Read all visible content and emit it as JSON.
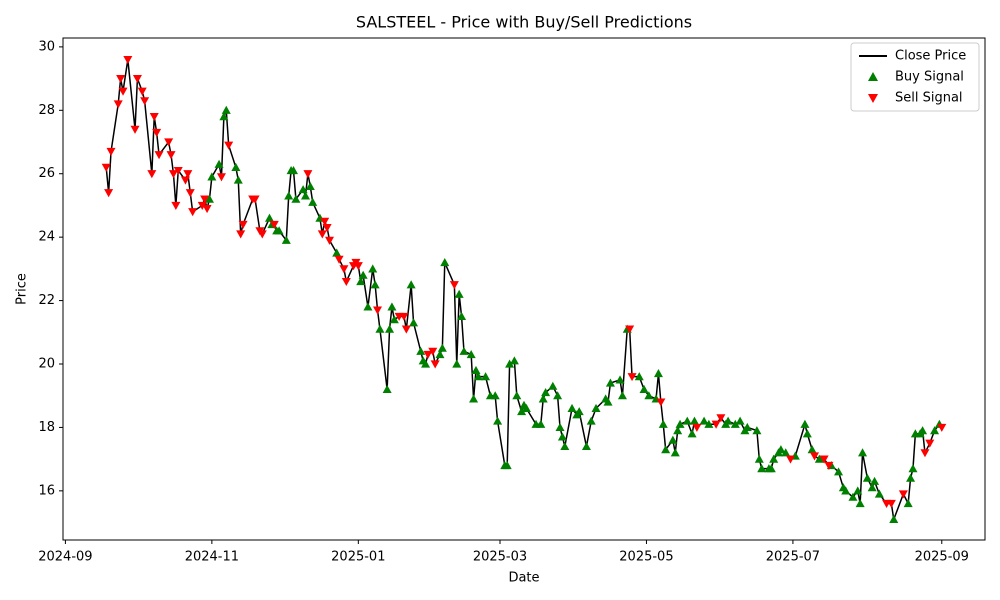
{
  "chart_data": {
    "type": "line",
    "title": "SALSTEEL - Price with Buy/Sell Predictions",
    "x_label": "Date",
    "y_label": "Price",
    "xlim": [
      "2024-08-31",
      "2025-09-19"
    ],
    "ylim": [
      14.45,
      30.28
    ],
    "xticks": [
      {
        "value": "2024-09-01",
        "label": "2024-09"
      },
      {
        "value": "2024-11-01",
        "label": "2024-11"
      },
      {
        "value": "2025-01-01",
        "label": "2025-01"
      },
      {
        "value": "2025-03-01",
        "label": "2025-03"
      },
      {
        "value": "2025-05-01",
        "label": "2025-05"
      },
      {
        "value": "2025-07-01",
        "label": "2025-07"
      },
      {
        "value": "2025-09-01",
        "label": "2025-09"
      }
    ],
    "yticks": [
      16,
      18,
      20,
      22,
      24,
      26,
      28,
      30
    ],
    "grid": false,
    "legend": "upper right",
    "series": [
      {
        "name": "Close Price",
        "type": "line",
        "color": "#000000",
        "x": [
          "2024-09-18",
          "2024-09-19",
          "2024-09-20",
          "2024-09-23",
          "2024-09-24",
          "2024-09-25",
          "2024-09-27",
          "2024-09-30",
          "2024-10-01",
          "2024-10-03",
          "2024-10-04",
          "2024-10-07",
          "2024-10-08",
          "2024-10-09",
          "2024-10-10",
          "2024-10-14",
          "2024-10-15",
          "2024-10-16",
          "2024-10-17",
          "2024-10-18",
          "2024-10-21",
          "2024-10-22",
          "2024-10-23",
          "2024-10-24",
          "2024-10-28",
          "2024-10-29",
          "2024-10-30",
          "2024-10-31",
          "2024-11-01",
          "2024-11-04",
          "2024-11-05",
          "2024-11-06",
          "2024-11-07",
          "2024-11-08",
          "2024-11-11",
          "2024-11-12",
          "2024-11-13",
          "2024-11-14",
          "2024-11-18",
          "2024-11-19",
          "2024-11-21",
          "2024-11-22",
          "2024-11-25",
          "2024-11-26",
          "2024-11-27",
          "2024-11-28",
          "2024-11-29",
          "2024-12-02",
          "2024-12-03",
          "2024-12-04",
          "2024-12-05",
          "2024-12-06",
          "2024-12-09",
          "2024-12-10",
          "2024-12-11",
          "2024-12-12",
          "2024-12-13",
          "2024-12-16",
          "2024-12-17",
          "2024-12-18",
          "2024-12-19",
          "2024-12-20",
          "2024-12-23",
          "2024-12-24",
          "2024-12-26",
          "2024-12-27",
          "2024-12-30",
          "2024-12-31",
          "2025-01-01",
          "2025-01-02",
          "2025-01-03",
          "2025-01-05",
          "2025-01-07",
          "2025-01-08",
          "2025-01-09",
          "2025-01-10",
          "2025-01-13",
          "2025-01-14",
          "2025-01-15",
          "2025-01-16",
          "2025-01-18",
          "2025-01-20",
          "2025-01-21",
          "2025-01-23",
          "2025-01-24",
          "2025-01-27",
          "2025-01-28",
          "2025-01-29",
          "2025-01-30",
          "2025-02-01",
          "2025-02-02",
          "2025-02-04",
          "2025-02-05",
          "2025-02-06",
          "2025-02-10",
          "2025-02-11",
          "2025-02-12",
          "2025-02-13",
          "2025-02-14",
          "2025-02-17",
          "2025-02-18",
          "2025-02-19",
          "2025-02-20",
          "2025-02-23",
          "2025-02-25",
          "2025-02-27",
          "2025-02-28",
          "2025-03-03",
          "2025-03-04",
          "2025-03-05",
          "2025-03-07",
          "2025-03-08",
          "2025-03-10",
          "2025-03-11",
          "2025-03-12",
          "2025-03-16",
          "2025-03-18",
          "2025-03-19",
          "2025-03-20",
          "2025-03-23",
          "2025-03-25",
          "2025-03-26",
          "2025-03-27",
          "2025-03-28",
          "2025-03-31",
          "2025-04-02",
          "2025-04-03",
          "2025-04-06",
          "2025-04-08",
          "2025-04-10",
          "2025-04-14",
          "2025-04-15",
          "2025-04-16",
          "2025-04-20",
          "2025-04-21",
          "2025-04-23",
          "2025-04-24",
          "2025-04-25",
          "2025-04-28",
          "2025-04-30",
          "2025-05-02",
          "2025-05-05",
          "2025-05-06",
          "2025-05-07",
          "2025-05-08",
          "2025-05-09",
          "2025-05-12",
          "2025-05-13",
          "2025-05-14",
          "2025-05-15",
          "2025-05-18",
          "2025-05-20",
          "2025-05-21",
          "2025-05-22",
          "2025-05-25",
          "2025-05-27",
          "2025-05-30",
          "2025-06-01",
          "2025-06-03",
          "2025-06-04",
          "2025-06-07",
          "2025-06-09",
          "2025-06-11",
          "2025-06-12",
          "2025-06-16",
          "2025-06-17",
          "2025-06-18",
          "2025-06-21",
          "2025-06-22",
          "2025-06-23",
          "2025-06-25",
          "2025-06-26",
          "2025-06-28",
          "2025-06-30",
          "2025-07-02",
          "2025-07-06",
          "2025-07-07",
          "2025-07-09",
          "2025-07-10",
          "2025-07-12",
          "2025-07-14",
          "2025-07-16",
          "2025-07-17",
          "2025-07-20",
          "2025-07-22",
          "2025-07-23",
          "2025-07-26",
          "2025-07-28",
          "2025-07-29",
          "2025-07-30",
          "2025-08-01",
          "2025-08-03",
          "2025-08-04",
          "2025-08-06",
          "2025-08-09",
          "2025-08-11",
          "2025-08-12",
          "2025-08-16",
          "2025-08-18",
          "2025-08-19",
          "2025-08-20",
          "2025-08-21",
          "2025-08-23",
          "2025-08-24",
          "2025-08-25",
          "2025-08-27",
          "2025-08-29",
          "2025-08-31",
          "2025-09-01"
        ],
        "values": [
          26.2,
          25.4,
          26.7,
          28.2,
          29.0,
          28.6,
          29.6,
          27.4,
          29.0,
          28.6,
          28.3,
          26.0,
          27.8,
          27.3,
          26.6,
          27.0,
          26.6,
          26.0,
          25.0,
          26.1,
          25.8,
          26.0,
          25.4,
          24.8,
          25.0,
          25.2,
          24.9,
          25.2,
          25.9,
          26.3,
          25.9,
          27.8,
          28.0,
          26.9,
          26.2,
          25.8,
          24.1,
          24.4,
          25.2,
          25.2,
          24.2,
          24.1,
          24.6,
          24.4,
          24.4,
          24.2,
          24.2,
          23.9,
          25.3,
          26.1,
          26.1,
          25.2,
          25.5,
          25.3,
          26.0,
          25.6,
          25.1,
          24.6,
          24.1,
          24.5,
          24.3,
          23.9,
          23.5,
          23.3,
          23.0,
          22.6,
          23.1,
          23.2,
          23.1,
          22.6,
          22.8,
          21.8,
          23.0,
          22.5,
          21.7,
          21.1,
          19.2,
          21.1,
          21.8,
          21.4,
          21.5,
          21.5,
          21.1,
          22.5,
          21.3,
          20.4,
          20.1,
          20.0,
          20.3,
          20.4,
          20.0,
          20.3,
          20.5,
          23.2,
          22.5,
          20.0,
          22.2,
          21.5,
          20.4,
          20.3,
          18.9,
          19.8,
          19.6,
          19.6,
          19.0,
          19.0,
          18.2,
          16.8,
          16.8,
          20.0,
          20.1,
          19.0,
          18.5,
          18.7,
          18.6,
          18.1,
          18.1,
          18.9,
          19.1,
          19.3,
          19.0,
          18.0,
          17.7,
          17.4,
          18.6,
          18.4,
          18.5,
          17.4,
          18.2,
          18.6,
          18.9,
          18.8,
          19.4,
          19.5,
          19.0,
          21.1,
          21.1,
          19.6,
          19.6,
          19.2,
          19.0,
          18.9,
          19.7,
          18.8,
          18.1,
          17.3,
          17.6,
          17.2,
          17.9,
          18.1,
          18.2,
          17.8,
          18.2,
          18.0,
          18.2,
          18.1,
          18.1,
          18.3,
          18.1,
          18.2,
          18.1,
          18.2,
          17.9,
          18.0,
          17.9,
          17.0,
          16.7,
          16.7,
          16.7,
          17.0,
          17.2,
          17.3,
          17.2,
          17.0,
          17.1,
          18.1,
          17.8,
          17.3,
          17.1,
          17.0,
          17.0,
          16.8,
          16.8,
          16.6,
          16.1,
          16.0,
          15.8,
          16.0,
          15.6,
          17.2,
          16.4,
          16.1,
          16.3,
          15.9,
          15.6,
          15.6,
          15.1,
          15.9,
          15.6,
          16.4,
          16.7,
          17.8,
          17.8,
          17.9,
          17.2,
          17.5,
          17.9,
          18.1,
          18.0
        ]
      },
      {
        "name": "Buy Signal",
        "type": "scatter",
        "marker": "^",
        "color": "#008000",
        "x": [
          "2024-10-31",
          "2024-11-01",
          "2024-11-04",
          "2024-11-06",
          "2024-11-07",
          "2024-11-11",
          "2024-11-12",
          "2024-11-25",
          "2024-11-26",
          "2024-11-28",
          "2024-11-29",
          "2024-12-02",
          "2024-12-03",
          "2024-12-04",
          "2024-12-05",
          "2024-12-06",
          "2024-12-09",
          "2024-12-10",
          "2024-12-12",
          "2024-12-13",
          "2024-12-16",
          "2024-12-23",
          "2025-01-02",
          "2025-01-03",
          "2025-01-05",
          "2025-01-07",
          "2025-01-08",
          "2025-01-10",
          "2025-01-13",
          "2025-01-14",
          "2025-01-15",
          "2025-01-16",
          "2025-01-23",
          "2025-01-24",
          "2025-01-27",
          "2025-01-28",
          "2025-01-29",
          "2025-02-04",
          "2025-02-05",
          "2025-02-06",
          "2025-02-11",
          "2025-02-12",
          "2025-02-13",
          "2025-02-14",
          "2025-02-17",
          "2025-02-18",
          "2025-02-19",
          "2025-02-20",
          "2025-02-23",
          "2025-02-25",
          "2025-02-27",
          "2025-02-28",
          "2025-03-03",
          "2025-03-04",
          "2025-03-05",
          "2025-03-07",
          "2025-03-08",
          "2025-03-10",
          "2025-03-11",
          "2025-03-12",
          "2025-03-16",
          "2025-03-18",
          "2025-03-19",
          "2025-03-20",
          "2025-03-23",
          "2025-03-25",
          "2025-03-26",
          "2025-03-27",
          "2025-03-28",
          "2025-03-31",
          "2025-04-02",
          "2025-04-03",
          "2025-04-06",
          "2025-04-08",
          "2025-04-10",
          "2025-04-14",
          "2025-04-15",
          "2025-04-16",
          "2025-04-20",
          "2025-04-21",
          "2025-04-23",
          "2025-04-28",
          "2025-04-30",
          "2025-05-02",
          "2025-05-05",
          "2025-05-06",
          "2025-05-08",
          "2025-05-09",
          "2025-05-12",
          "2025-05-13",
          "2025-05-14",
          "2025-05-15",
          "2025-05-18",
          "2025-05-20",
          "2025-05-21",
          "2025-05-25",
          "2025-05-27",
          "2025-06-03",
          "2025-06-04",
          "2025-06-07",
          "2025-06-09",
          "2025-06-11",
          "2025-06-12",
          "2025-06-16",
          "2025-06-17",
          "2025-06-18",
          "2025-06-21",
          "2025-06-22",
          "2025-06-23",
          "2025-06-25",
          "2025-06-26",
          "2025-06-28",
          "2025-07-02",
          "2025-07-06",
          "2025-07-07",
          "2025-07-09",
          "2025-07-12",
          "2025-07-17",
          "2025-07-20",
          "2025-07-22",
          "2025-07-23",
          "2025-07-26",
          "2025-07-28",
          "2025-07-29",
          "2025-07-30",
          "2025-08-01",
          "2025-08-03",
          "2025-08-04",
          "2025-08-06",
          "2025-08-12",
          "2025-08-18",
          "2025-08-19",
          "2025-08-20",
          "2025-08-21",
          "2025-08-23",
          "2025-08-24",
          "2025-08-29",
          "2025-08-31"
        ],
        "values": [
          25.2,
          25.9,
          26.3,
          27.8,
          28.0,
          26.2,
          25.8,
          24.6,
          24.4,
          24.2,
          24.2,
          23.9,
          25.3,
          26.1,
          26.1,
          25.2,
          25.5,
          25.3,
          25.6,
          25.1,
          24.6,
          23.5,
          22.6,
          22.8,
          21.8,
          23.0,
          22.5,
          21.1,
          19.2,
          21.1,
          21.8,
          21.4,
          22.5,
          21.3,
          20.4,
          20.1,
          20.0,
          20.3,
          20.5,
          23.2,
          20.0,
          22.2,
          21.5,
          20.4,
          20.3,
          18.9,
          19.8,
          19.6,
          19.6,
          19.0,
          19.0,
          18.2,
          16.8,
          16.8,
          20.0,
          20.1,
          19.0,
          18.5,
          18.7,
          18.6,
          18.1,
          18.1,
          18.9,
          19.1,
          19.3,
          19.0,
          18.0,
          17.7,
          17.4,
          18.6,
          18.4,
          18.5,
          17.4,
          18.2,
          18.6,
          18.9,
          18.8,
          19.4,
          19.5,
          19.0,
          21.1,
          19.6,
          19.2,
          19.0,
          18.9,
          19.7,
          18.1,
          17.3,
          17.6,
          17.2,
          17.9,
          18.1,
          18.2,
          17.8,
          18.2,
          18.2,
          18.1,
          18.1,
          18.2,
          18.1,
          18.2,
          17.9,
          18.0,
          17.9,
          17.0,
          16.7,
          16.7,
          16.7,
          17.0,
          17.2,
          17.3,
          17.2,
          17.1,
          18.1,
          17.8,
          17.3,
          17.0,
          16.8,
          16.6,
          16.1,
          16.0,
          15.8,
          16.0,
          15.6,
          17.2,
          16.4,
          16.1,
          16.3,
          15.9,
          15.1,
          15.6,
          16.4,
          16.7,
          17.8,
          17.8,
          17.9,
          17.9,
          18.1
        ]
      },
      {
        "name": "Sell Signal",
        "type": "scatter",
        "marker": "v",
        "color": "#ff0000",
        "x": [
          "2024-09-18",
          "2024-09-19",
          "2024-09-20",
          "2024-09-23",
          "2024-09-24",
          "2024-09-25",
          "2024-09-27",
          "2024-09-30",
          "2024-10-01",
          "2024-10-03",
          "2024-10-04",
          "2024-10-07",
          "2024-10-08",
          "2024-10-09",
          "2024-10-10",
          "2024-10-14",
          "2024-10-15",
          "2024-10-16",
          "2024-10-17",
          "2024-10-18",
          "2024-10-21",
          "2024-10-22",
          "2024-10-23",
          "2024-10-24",
          "2024-10-28",
          "2024-10-29",
          "2024-10-30",
          "2024-11-05",
          "2024-11-08",
          "2024-11-13",
          "2024-11-14",
          "2024-11-18",
          "2024-11-19",
          "2024-11-21",
          "2024-11-22",
          "2024-11-27",
          "2024-12-11",
          "2024-12-17",
          "2024-12-18",
          "2024-12-19",
          "2024-12-20",
          "2024-12-24",
          "2024-12-26",
          "2024-12-27",
          "2024-12-30",
          "2024-12-31",
          "2025-01-01",
          "2025-01-09",
          "2025-01-18",
          "2025-01-20",
          "2025-01-21",
          "2025-01-30",
          "2025-02-01",
          "2025-02-02",
          "2025-02-10",
          "2025-04-24",
          "2025-04-25",
          "2025-05-07",
          "2025-05-22",
          "2025-05-30",
          "2025-06-01",
          "2025-06-30",
          "2025-07-10",
          "2025-07-14",
          "2025-07-16",
          "2025-08-09",
          "2025-08-11",
          "2025-08-16",
          "2025-08-25",
          "2025-08-27",
          "2025-09-01"
        ],
        "values": [
          26.2,
          25.4,
          26.7,
          28.2,
          29.0,
          28.6,
          29.6,
          27.4,
          29.0,
          28.6,
          28.3,
          26.0,
          27.8,
          27.3,
          26.6,
          27.0,
          26.6,
          26.0,
          25.0,
          26.1,
          25.8,
          26.0,
          25.4,
          24.8,
          25.0,
          25.2,
          24.9,
          25.9,
          26.9,
          24.1,
          24.4,
          25.2,
          25.2,
          24.2,
          24.1,
          24.4,
          26.0,
          24.1,
          24.5,
          24.3,
          23.9,
          23.3,
          23.0,
          22.6,
          23.1,
          23.2,
          23.1,
          21.7,
          21.5,
          21.5,
          21.1,
          20.3,
          20.4,
          20.0,
          22.5,
          21.1,
          19.6,
          18.8,
          18.0,
          18.1,
          18.3,
          17.0,
          17.1,
          17.0,
          16.8,
          15.6,
          15.6,
          15.9,
          17.2,
          17.5,
          18.0
        ]
      }
    ]
  }
}
